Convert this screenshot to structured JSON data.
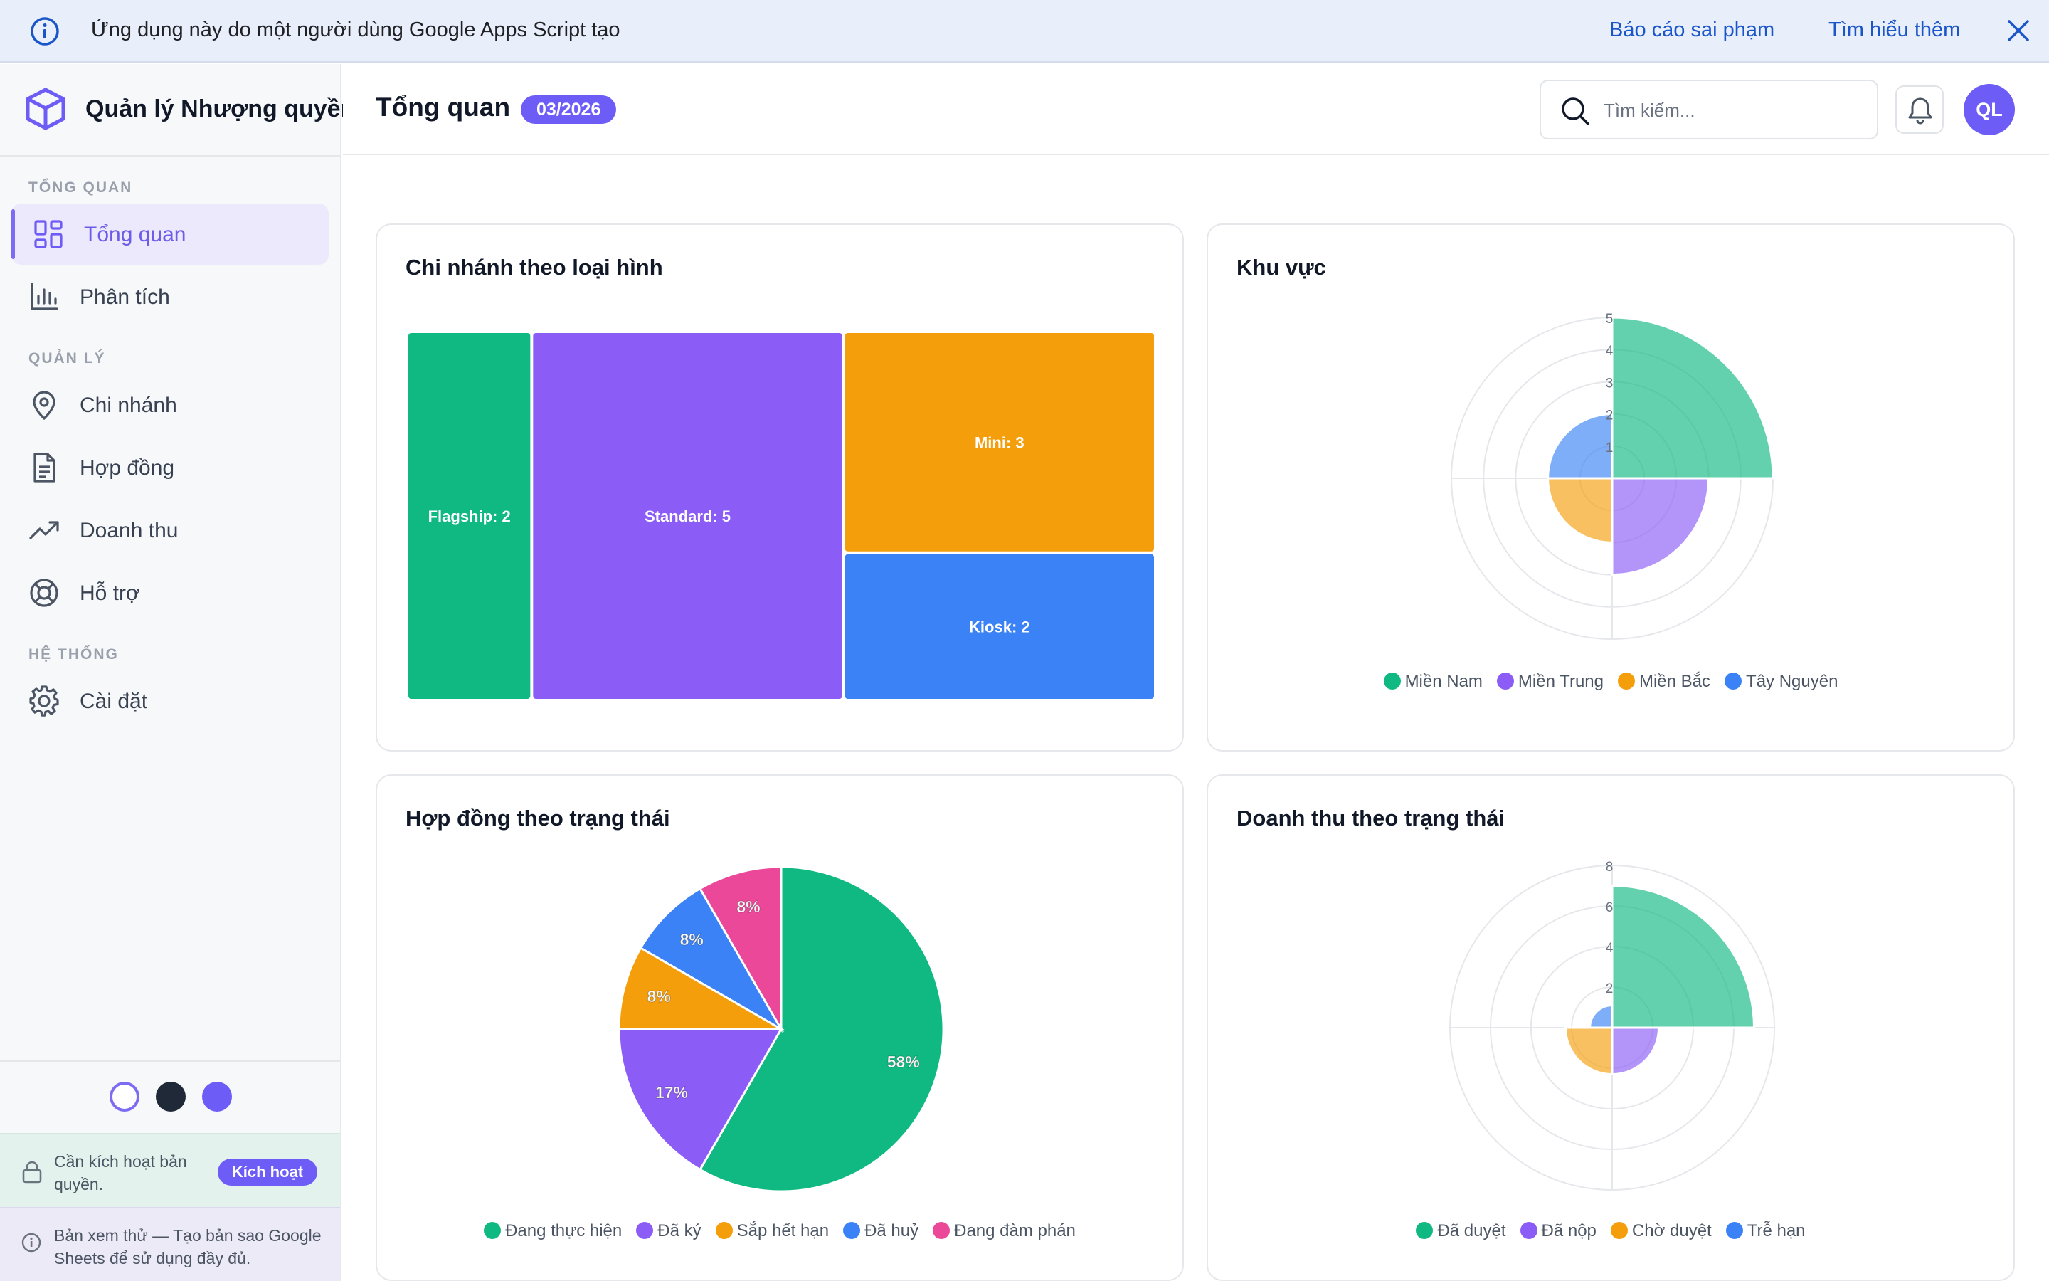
{
  "banner": {
    "text": "Ứng dụng này do một người dùng Google Apps Script tạo",
    "report_link": "Báo cáo sai phạm",
    "learn_link": "Tìm hiểu thêm"
  },
  "brand": {
    "title": "Quản lý Nhượng quyền"
  },
  "sidebar": {
    "sections": [
      {
        "label": "TỔNG QUAN",
        "items": [
          {
            "label": "Tổng quan",
            "icon": "grid-icon",
            "active": true
          },
          {
            "label": "Phân tích",
            "icon": "bar-chart-icon"
          }
        ]
      },
      {
        "label": "QUẢN LÝ",
        "items": [
          {
            "label": "Chi nhánh",
            "icon": "map-pin-icon"
          },
          {
            "label": "Hợp đồng",
            "icon": "document-icon"
          },
          {
            "label": "Doanh thu",
            "icon": "trending-up-icon"
          },
          {
            "label": "Hỗ trợ",
            "icon": "lifebuoy-icon"
          }
        ]
      },
      {
        "label": "HỆ THỐNG",
        "items": [
          {
            "label": "Cài đặt",
            "icon": "gear-icon"
          }
        ]
      }
    ],
    "license": {
      "text": "Cần kích hoạt bản quyền.",
      "button": "Kích hoạt"
    },
    "preview": {
      "text": "Bản xem thử — Tạo bản sao Google Sheets để sử dụng đầy đủ."
    },
    "themes": [
      "#ffffff",
      "#1f2937",
      "#6d5cf6"
    ]
  },
  "header": {
    "title": "Tổng quan",
    "period": "03/2026",
    "search_placeholder": "Tìm kiếm...",
    "avatar": "QL"
  },
  "colors": {
    "green": "#10b981",
    "purple": "#8b5cf6",
    "amber": "#f59e0b",
    "blue": "#3b82f6",
    "pink": "#ec4899",
    "accent": "#6d5cf6"
  },
  "chart_data": [
    {
      "id": "branches",
      "type": "treemap",
      "title": "Chi nhánh theo loại hình",
      "categories": [
        "Flagship",
        "Standard",
        "Mini",
        "Kiosk"
      ],
      "values": [
        2,
        5,
        3,
        2
      ],
      "labels": [
        "Flagship: 2",
        "Standard: 5",
        "Mini: 3",
        "Kiosk: 2"
      ],
      "colors": [
        "#10b981",
        "#8b5cf6",
        "#f59e0b",
        "#3b82f6"
      ]
    },
    {
      "id": "regions",
      "type": "polarArea",
      "title": "Khu vực",
      "categories": [
        "Miền Nam",
        "Miền Trung",
        "Miền Bắc",
        "Tây Nguyên"
      ],
      "values": [
        5,
        3,
        2,
        2
      ],
      "rmax": 5,
      "ticks": [
        "1",
        "2",
        "3",
        "4",
        "5"
      ],
      "colors": [
        "#10b981",
        "#8b5cf6",
        "#f59e0b",
        "#3b82f6"
      ]
    },
    {
      "id": "contracts",
      "type": "pie",
      "title": "Hợp đồng theo trạng thái",
      "categories": [
        "Đang thực hiện",
        "Đã ký",
        "Sắp hết hạn",
        "Đã huỷ",
        "Đang đàm phán"
      ],
      "values": [
        7,
        2,
        1,
        1,
        1
      ],
      "labels": [
        "58%",
        "17%",
        "8%",
        "8%",
        "8%"
      ],
      "colors": [
        "#10b981",
        "#8b5cf6",
        "#f59e0b",
        "#3b82f6",
        "#ec4899"
      ]
    },
    {
      "id": "revenue",
      "type": "polarArea",
      "title": "Doanh thu theo trạng thái",
      "categories": [
        "Đã duyệt",
        "Đã nộp",
        "Chờ duyệt",
        "Trễ hạn"
      ],
      "values": [
        7,
        2.3,
        2.3,
        1.1
      ],
      "rmax": 8,
      "ticks": [
        "2",
        "4",
        "6",
        "8"
      ],
      "colors": [
        "#10b981",
        "#8b5cf6",
        "#f59e0b",
        "#3b82f6"
      ]
    }
  ]
}
